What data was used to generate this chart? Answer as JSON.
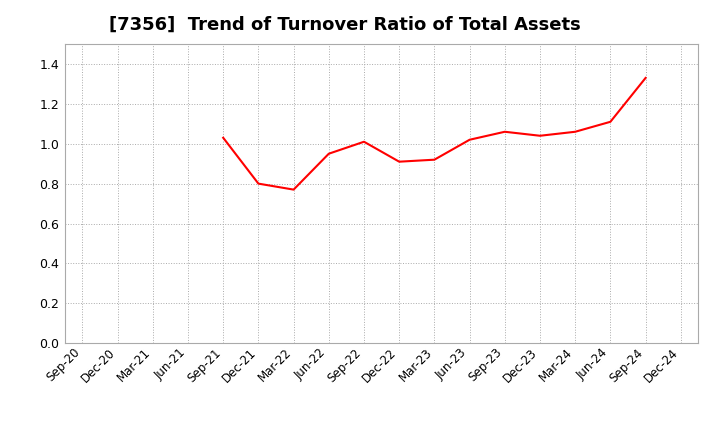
{
  "title": "[7356]  Trend of Turnover Ratio of Total Assets",
  "title_fontsize": 13,
  "line_color": "#FF0000",
  "line_width": 1.5,
  "background_color": "#FFFFFF",
  "plot_bg_color": "#FFFFFF",
  "grid_color": "#AAAAAA",
  "ylim": [
    0.0,
    1.5
  ],
  "yticks": [
    0.0,
    0.2,
    0.4,
    0.6,
    0.8,
    1.0,
    1.2,
    1.4
  ],
  "x_labels": [
    "Sep-20",
    "Dec-20",
    "Mar-21",
    "Jun-21",
    "Sep-21",
    "Dec-21",
    "Mar-22",
    "Jun-22",
    "Sep-22",
    "Dec-22",
    "Mar-23",
    "Jun-23",
    "Sep-23",
    "Dec-23",
    "Mar-24",
    "Jun-24",
    "Sep-24",
    "Dec-24"
  ],
  "data_keys": [
    "Sep-21",
    "Dec-21",
    "Mar-22",
    "Jun-22",
    "Sep-22",
    "Dec-22",
    "Mar-23",
    "Jun-23",
    "Sep-23",
    "Dec-23",
    "Mar-24",
    "Jun-24",
    "Sep-24"
  ],
  "data_values": [
    1.03,
    0.8,
    0.77,
    0.95,
    1.01,
    0.91,
    0.92,
    1.02,
    1.06,
    1.04,
    1.06,
    1.11,
    1.33
  ]
}
